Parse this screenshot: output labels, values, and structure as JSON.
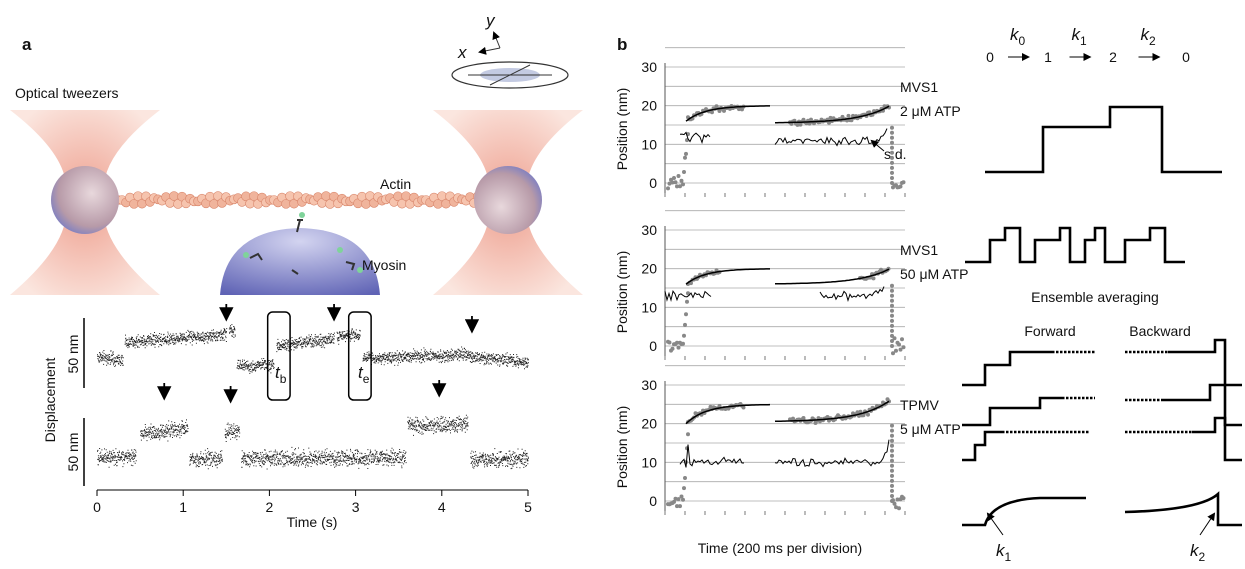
{
  "panel_a": {
    "label": "a",
    "axis_x": "x",
    "axis_y": "y",
    "tweezers_label": "Optical tweezers",
    "actin_label": "Actin",
    "myosin_label": "Myosin",
    "y_axis_title": "Displacement",
    "scale_bars": [
      "50 nm",
      "50 nm"
    ],
    "intervals": [
      {
        "symbol": "t",
        "subscript": "b"
      },
      {
        "symbol": "t",
        "subscript": "e"
      }
    ],
    "xticks": [
      "0",
      "1",
      "2",
      "3",
      "4",
      "5"
    ],
    "x_axis_title": "Time (s)"
  },
  "panel_b": {
    "label": "b",
    "plots": [
      {
        "y_axis_title": "Position (nm)",
        "yticks": [
          "0",
          "10",
          "20",
          "30"
        ],
        "construct": "MVS1",
        "condition": "2 μM ATP",
        "annotation": "s.d."
      },
      {
        "y_axis_title": "Position (nm)",
        "yticks": [
          "0",
          "10",
          "20",
          "30"
        ],
        "construct": "MVS1",
        "condition": "50 μM ATP"
      },
      {
        "y_axis_title": "Position (nm)",
        "yticks": [
          "0",
          "10",
          "20",
          "30"
        ],
        "construct": "TPMV",
        "condition": "5 μM ATP"
      }
    ],
    "x_axis_title": "Time (200 ms per division)"
  },
  "scheme": {
    "states": [
      "0",
      "1",
      "2",
      "0"
    ],
    "rates": [
      {
        "symbol": "k",
        "subscript": "0"
      },
      {
        "symbol": "k",
        "subscript": "1"
      },
      {
        "symbol": "k",
        "subscript": "2"
      }
    ],
    "ensemble_title": "Ensemble averaging",
    "forward": "Forward",
    "backward": "Backward",
    "rate_callouts": [
      {
        "symbol": "k",
        "subscript": "1"
      },
      {
        "symbol": "k",
        "subscript": "2"
      }
    ]
  }
}
